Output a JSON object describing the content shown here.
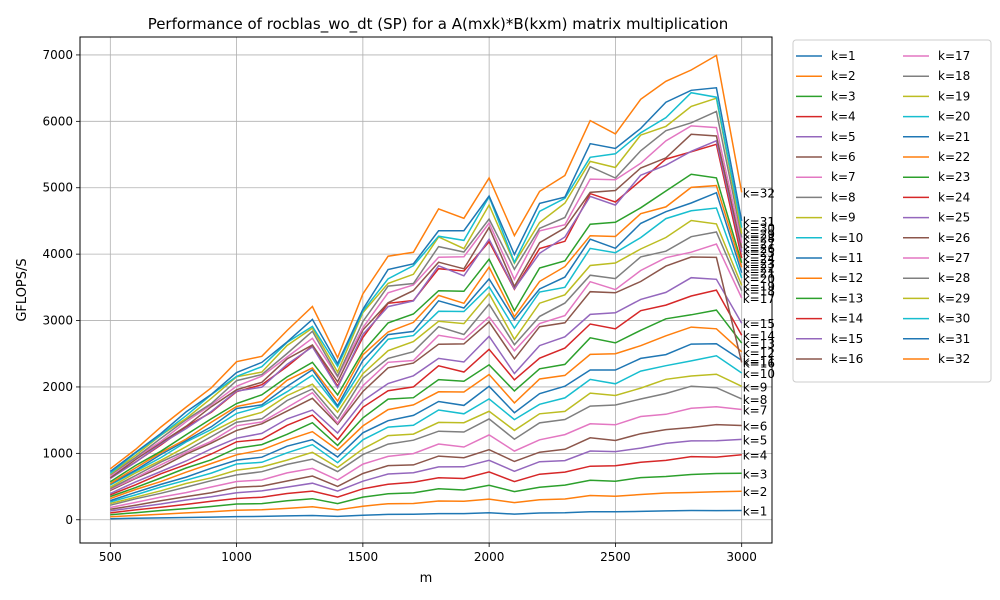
{
  "chart_data": {
    "type": "line",
    "title": "Performance of rocblas_wo_dt (SP) for a A(mxk)*B(kxm) matrix multiplication",
    "xlabel": "m",
    "ylabel": "GFLOPS/S",
    "xlim": [
      380,
      3120
    ],
    "ylim": [
      -350,
      7270
    ],
    "xticks": [
      500,
      1000,
      1500,
      2000,
      2500,
      3000
    ],
    "yticks": [
      0,
      1000,
      2000,
      3000,
      4000,
      5000,
      6000,
      7000
    ],
    "grid": true,
    "legend_position": "outside-right",
    "legend_columns": 2,
    "palette": [
      "#1f77b4",
      "#ff7f0e",
      "#2ca02c",
      "#d62728",
      "#9467bd",
      "#8c564b",
      "#e377c2",
      "#7f7f7f",
      "#bcbd22",
      "#17becf"
    ],
    "x": [
      500,
      600,
      700,
      800,
      900,
      1000,
      1100,
      1200,
      1300,
      1400,
      1500,
      1600,
      1700,
      1800,
      1900,
      2000,
      2100,
      2200,
      2300,
      2400,
      2500,
      2600,
      2700,
      2800,
      2900,
      3000
    ],
    "dip_factors": [
      1.0,
      1.0,
      1.0,
      1.0,
      1.0,
      1.0,
      0.95,
      1.0,
      1.02,
      0.87,
      1.0,
      1.0,
      0.95,
      1.0,
      0.98,
      1.0,
      0.94,
      1.0,
      0.95,
      1.0,
      0.96,
      1.0,
      1.0,
      1.0,
      1.0,
      0.8
    ],
    "series_peaks": [
      {
        "name": "k=1",
        "peak": 140,
        "end_label": "k=1",
        "end_value": 140
      },
      {
        "name": "k=2",
        "peak": 420,
        "end_label": "k=2",
        "end_value": 430
      },
      {
        "name": "k=3",
        "peak": 690,
        "end_label": "k=3",
        "end_value": 700
      },
      {
        "name": "k=4",
        "peak": 950,
        "end_label": "k=4",
        "end_value": 980
      },
      {
        "name": "k=5",
        "peak": 1200,
        "end_label": "k=5",
        "end_value": 1210
      },
      {
        "name": "k=6",
        "peak": 1420,
        "end_label": "k=6",
        "end_value": 1420
      },
      {
        "name": "k=7",
        "peak": 1690,
        "end_label": "k=7",
        "end_value": 1660
      },
      {
        "name": "k=8",
        "peak": 2010,
        "end_label": "k=8",
        "end_value": 1820
      },
      {
        "name": "k=9",
        "peak": 2200,
        "end_label": "k=9",
        "end_value": 2010
      },
      {
        "name": "k=10",
        "peak": 2440,
        "end_label": "k=10",
        "end_value": 2210
      },
      {
        "name": "k=11",
        "peak": 2650,
        "end_label": "k=11",
        "end_value": 2400
      },
      {
        "name": "k=12",
        "peak": 2910,
        "end_label": "k=12",
        "end_value": 2530
      },
      {
        "name": "k=13",
        "peak": 3150,
        "end_label": "k=13",
        "end_value": 2660
      },
      {
        "name": "k=14",
        "peak": 3420,
        "end_label": "k=14",
        "end_value": 2780
      },
      {
        "name": "k=15",
        "peak": 3640,
        "end_label": "k=15",
        "end_value": 2960
      },
      {
        "name": "k=16",
        "peak": 3990,
        "end_label": "k=16",
        "end_value": 2370
      },
      {
        "name": "k=17",
        "peak": 4120,
        "end_label": "k=17",
        "end_value": 3340
      },
      {
        "name": "k=18",
        "peak": 4300,
        "end_label": "k=18",
        "end_value": 3450
      },
      {
        "name": "k=19",
        "peak": 4500,
        "end_label": "k=19",
        "end_value": 3530
      },
      {
        "name": "k=20",
        "peak": 4720,
        "end_label": "k=20",
        "end_value": 3640
      },
      {
        "name": "k=21",
        "peak": 4870,
        "end_label": "k=21",
        "end_value": 3720
      },
      {
        "name": "k=22",
        "peak": 5020,
        "end_label": "k=22",
        "end_value": 3800
      },
      {
        "name": "k=23",
        "peak": 5210,
        "end_label": "k=23",
        "end_value": 3870
      },
      {
        "name": "k=24",
        "peak": 5650,
        "end_label": "k=24",
        "end_value": 3940
      },
      {
        "name": "k=25",
        "peak": 5640,
        "end_label": "k=25",
        "end_value": 4030
      },
      {
        "name": "k=26",
        "peak": 5800,
        "end_label": "k=26",
        "end_value": 4090
      },
      {
        "name": "k=27",
        "peak": 5970,
        "end_label": "k=27",
        "end_value": 4170
      },
      {
        "name": "k=28",
        "peak": 6110,
        "end_label": "k=28",
        "end_value": 4250
      },
      {
        "name": "k=29",
        "peak": 6290,
        "end_label": "k=29",
        "end_value": 4310
      },
      {
        "name": "k=30",
        "peak": 6420,
        "end_label": "k=30",
        "end_value": 4400
      },
      {
        "name": "k=31",
        "peak": 6550,
        "end_label": "k=31",
        "end_value": 4500
      },
      {
        "name": "k=32",
        "peak": 6920,
        "end_label": "k=32",
        "end_value": 4930
      }
    ]
  }
}
